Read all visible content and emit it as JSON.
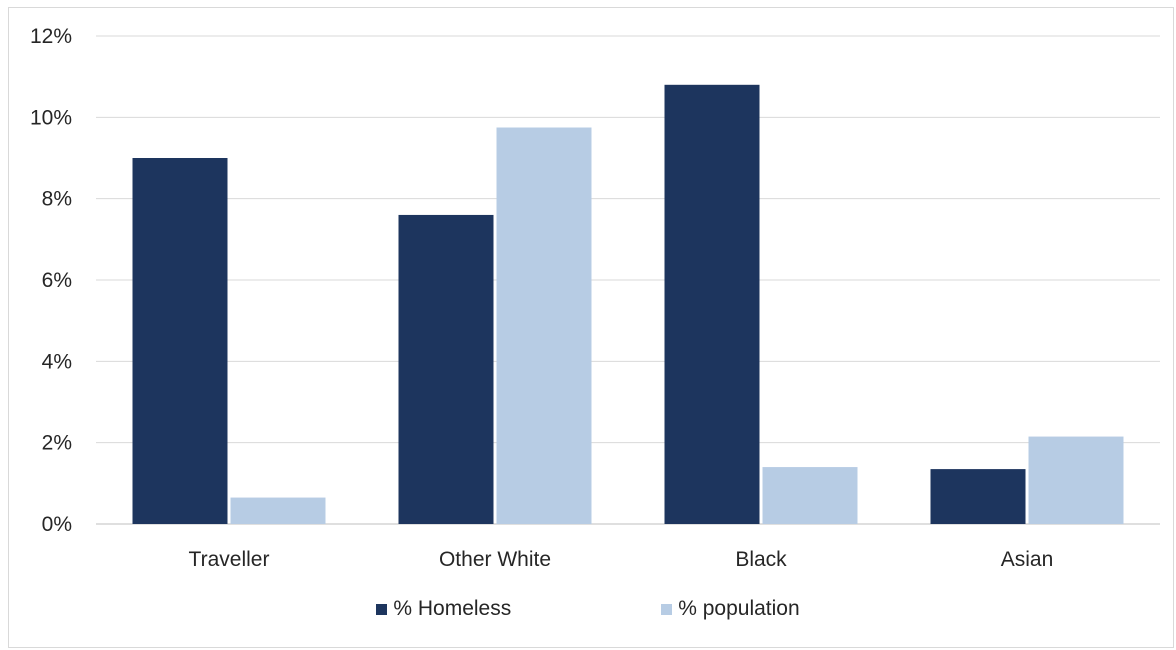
{
  "chart_data": {
    "type": "bar",
    "categories": [
      "Traveller",
      "Other White",
      "Black",
      "Asian"
    ],
    "series": [
      {
        "name": "% Homeless",
        "values": [
          9.0,
          7.6,
          10.8,
          1.35
        ],
        "color": "#1d355e"
      },
      {
        "name": "% population",
        "values": [
          0.65,
          9.75,
          1.4,
          2.15
        ],
        "color": "#b7cce4"
      }
    ],
    "ylim": [
      0,
      12
    ],
    "yticks": [
      0,
      2,
      4,
      6,
      8,
      10,
      12
    ],
    "ytick_labels": [
      "0%",
      "2%",
      "4%",
      "6%",
      "8%",
      "10%",
      "12%"
    ],
    "grid": true,
    "legend_position": "bottom"
  }
}
